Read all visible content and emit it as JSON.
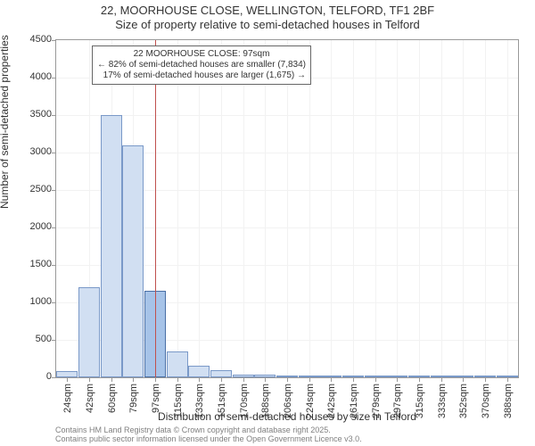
{
  "title": {
    "line1": "22, MOORHOUSE CLOSE, WELLINGTON, TELFORD, TF1 2BF",
    "line2": "Size of property relative to semi-detached houses in Telford"
  },
  "chart": {
    "type": "bar",
    "plot_bg": "#ffffff",
    "border_color": "#999999",
    "grid_color": "#f2f2f2",
    "y_axis": {
      "label": "Number of semi-detached properties",
      "min": 0,
      "max": 4500,
      "tick_step": 500,
      "ticks": [
        0,
        500,
        1000,
        1500,
        2000,
        2500,
        3000,
        3500,
        4000,
        4500
      ],
      "label_fontsize": 12,
      "tick_fontsize": 11
    },
    "x_axis": {
      "label": "Distribution of semi-detached houses by size in Telford",
      "tick_labels": [
        "24sqm",
        "42sqm",
        "60sqm",
        "79sqm",
        "97sqm",
        "115sqm",
        "133sqm",
        "151sqm",
        "170sqm",
        "188sqm",
        "206sqm",
        "224sqm",
        "242sqm",
        "261sqm",
        "279sqm",
        "297sqm",
        "315sqm",
        "333sqm",
        "352sqm",
        "370sqm",
        "388sqm"
      ],
      "label_fontsize": 12,
      "tick_fontsize": 11
    },
    "bars": {
      "values": [
        80,
        1200,
        3500,
        3100,
        1150,
        350,
        150,
        90,
        40,
        30,
        20,
        10,
        5,
        5,
        3,
        3,
        2,
        2,
        2,
        1,
        1
      ],
      "fill_color": "#d1dff2",
      "border_color": "#7a99c8",
      "highlight_index": 4,
      "highlight_fill": "#a6c3e8",
      "highlight_border": "#4a6fa5"
    },
    "highlight_line": {
      "color": "#c0504d",
      "at_index": 4
    },
    "annotation": {
      "line1": "22 MOORHOUSE CLOSE: 97sqm",
      "line2": "← 82% of semi-detached houses are smaller (7,834)",
      "line3": "17% of semi-detached houses are larger (1,675) →",
      "border_color": "#666666",
      "bg": "#ffffff",
      "fontsize": 10
    }
  },
  "credits": {
    "line1": "Contains HM Land Registry data © Crown copyright and database right 2025.",
    "line2": "Contains public sector information licensed under the Open Government Licence v3.0."
  }
}
